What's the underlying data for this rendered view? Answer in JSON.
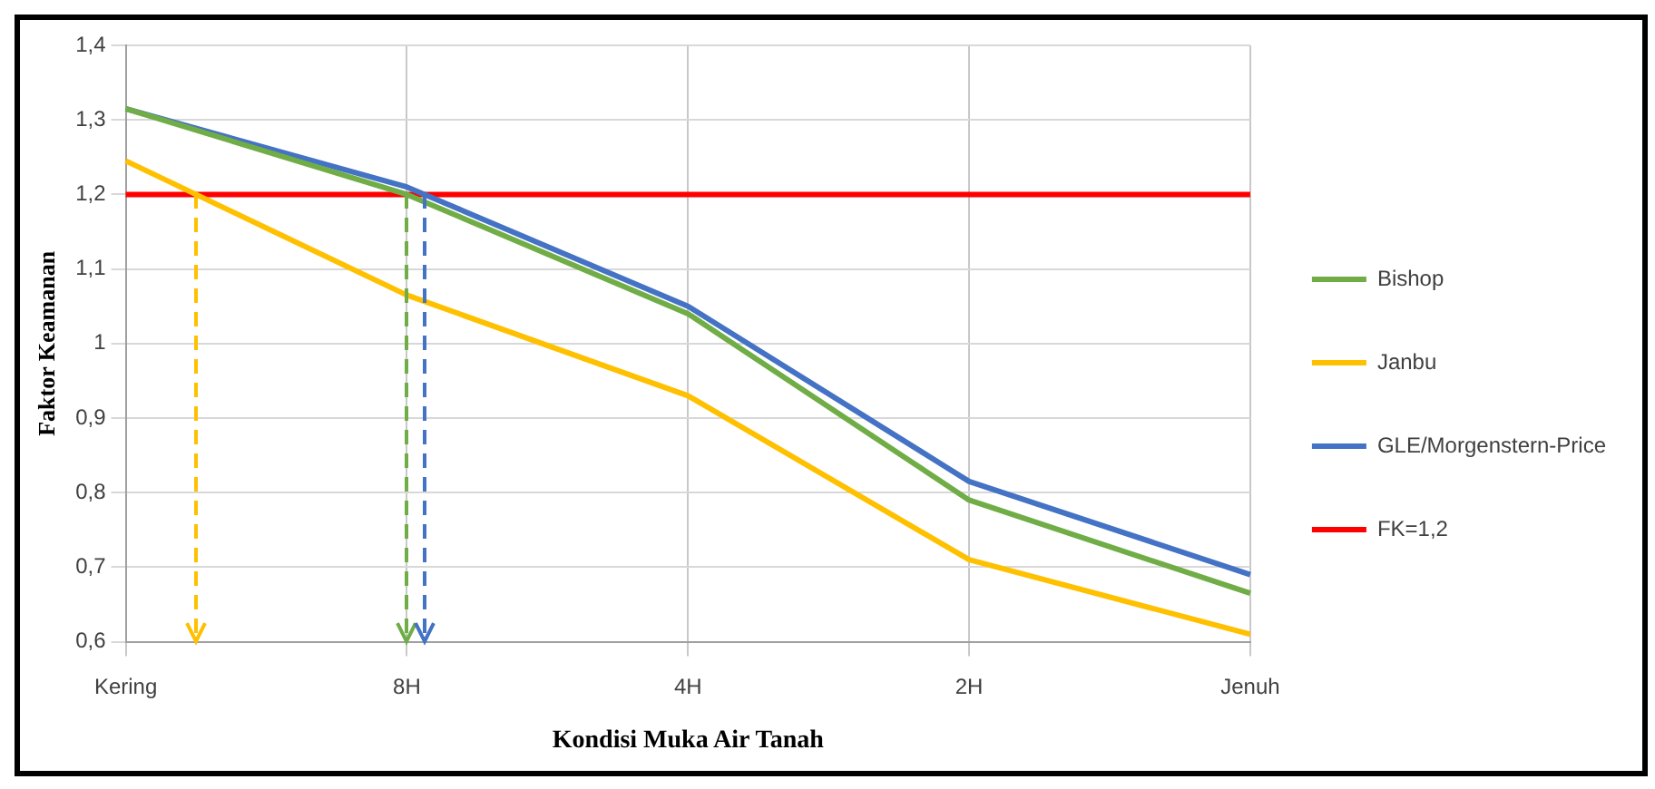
{
  "chart_data": {
    "type": "line",
    "xlabel": "Kondisi Muka Air Tanah",
    "ylabel": "Faktor Keamanan",
    "categories": [
      "Kering",
      "8H",
      "4H",
      "2H",
      "Jenuh"
    ],
    "series": [
      {
        "name": "Bishop",
        "color": "#70ad47",
        "values": [
          1.315,
          1.2,
          1.04,
          0.79,
          0.665
        ]
      },
      {
        "name": "Janbu",
        "color": "#ffc000",
        "values": [
          1.245,
          1.065,
          0.93,
          0.71,
          0.61
        ]
      },
      {
        "name": "GLE/Morgenstern-Price",
        "color": "#4472c4",
        "values": [
          1.315,
          1.21,
          1.05,
          0.815,
          0.69
        ]
      }
    ],
    "ref_lines": [
      {
        "axis": "y",
        "value": 1.2,
        "label": "FK=1,2",
        "color": "#ff0000"
      }
    ],
    "ylim": [
      0.6,
      1.4
    ],
    "yticks": [
      {
        "value": 0.6,
        "label": "0,6"
      },
      {
        "value": 0.7,
        "label": "0,7"
      },
      {
        "value": 0.8,
        "label": "0,8"
      },
      {
        "value": 0.9,
        "label": "0,9"
      },
      {
        "value": 1,
        "label": "1"
      },
      {
        "value": 1.1,
        "label": "1,1"
      },
      {
        "value": 1.2,
        "label": "1,2"
      },
      {
        "value": 1.3,
        "label": "1,3"
      },
      {
        "value": 1.4,
        "label": "1,4"
      }
    ],
    "grid": true,
    "legend": "right",
    "marker": "none",
    "line_style": "solid"
  }
}
